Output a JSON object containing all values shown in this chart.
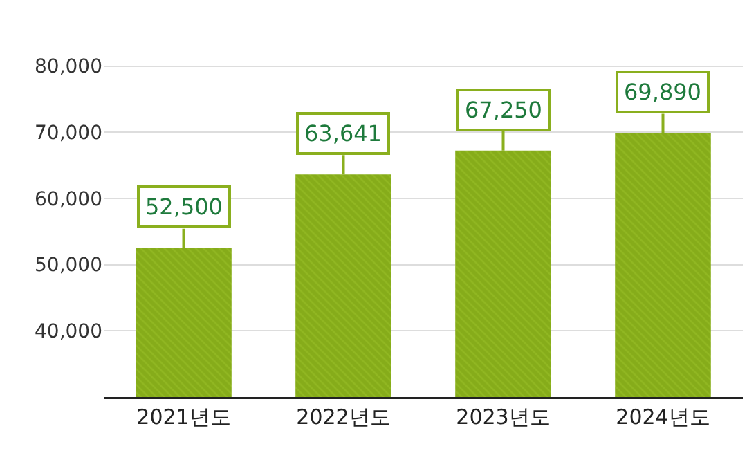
{
  "chart_data": {
    "type": "bar",
    "categories": [
      "2021년도",
      "2022년도",
      "2023년도",
      "2024년도"
    ],
    "values": [
      52500,
      63641,
      67250,
      69890
    ],
    "value_labels": [
      "52,500",
      "63,641",
      "67,250",
      "69,890"
    ],
    "color": "#86ac1a",
    "ylim": [
      30000,
      90000
    ],
    "yticks": [
      {
        "value": 40000,
        "label": "40,000"
      },
      {
        "value": 50000,
        "label": "50,000"
      },
      {
        "value": 60000,
        "label": "60,000"
      },
      {
        "value": 70000,
        "label": "70,000"
      },
      {
        "value": 80000,
        "label": "80,000"
      }
    ],
    "grid": "y"
  }
}
